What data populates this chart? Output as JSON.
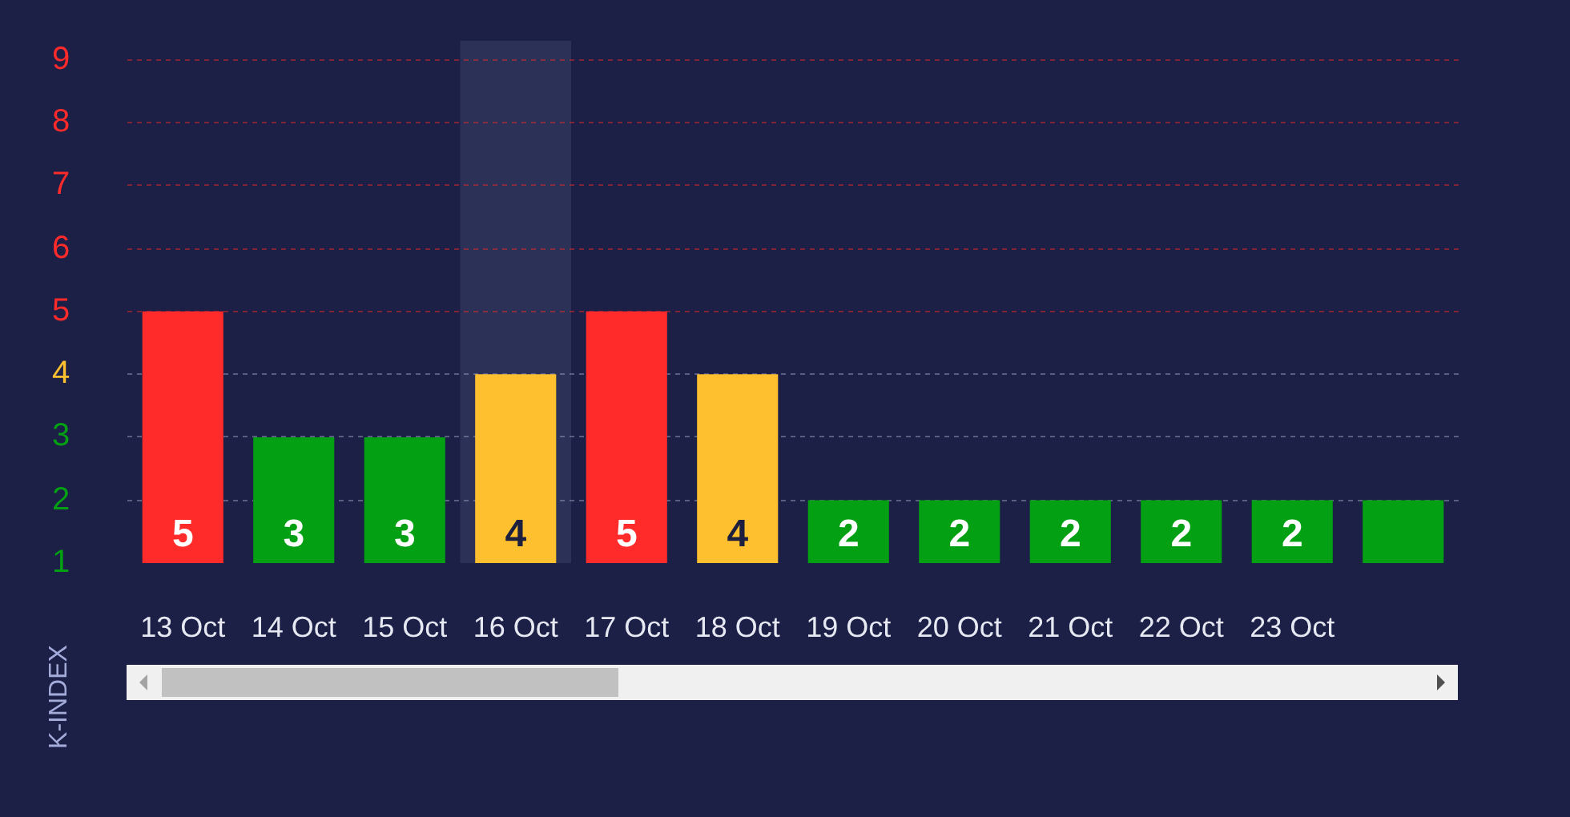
{
  "chart_data": {
    "type": "bar",
    "categories": [
      "13 Oct",
      "14 Oct",
      "15 Oct",
      "16 Oct",
      "17 Oct",
      "18 Oct",
      "19 Oct",
      "20 Oct",
      "21 Oct",
      "22 Oct",
      "23 Oct",
      null
    ],
    "values": [
      5,
      3,
      3,
      4,
      5,
      4,
      2,
      2,
      2,
      2,
      2,
      2
    ],
    "colors": [
      "#ff2b2b",
      "#04a014",
      "#04a014",
      "#fec02e",
      "#ff2b2b",
      "#fec02e",
      "#04a014",
      "#04a014",
      "#04a014",
      "#04a014",
      "#04a014",
      "#04a014"
    ],
    "value_labels": [
      "5",
      "3",
      "3",
      "4",
      "5",
      "4",
      "2",
      "2",
      "2",
      "2",
      "2",
      null
    ],
    "ylabel": "K-INDEX",
    "ylim": [
      1,
      9.3
    ],
    "yticks": [
      1,
      2,
      3,
      4,
      5,
      6,
      7,
      8,
      9
    ],
    "grid": "y",
    "bands": [
      {
        "axis": "x",
        "from": "16 Oct",
        "to": "16 Oct",
        "color": "#2c3157"
      }
    ]
  }
}
